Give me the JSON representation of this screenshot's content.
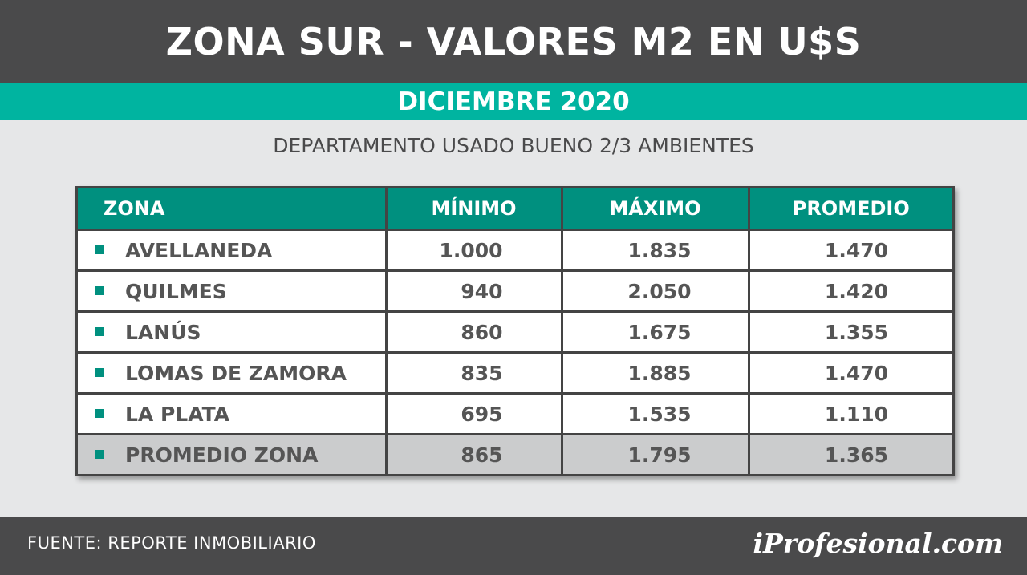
{
  "header": {
    "title": "ZONA SUR - VALORES M2 EN U$S",
    "date": "DICIEMBRE 2020",
    "subtitle": "DEPARTAMENTO USADO BUENO 2/3 AMBIENTES"
  },
  "chart_data": {
    "type": "table",
    "columns": [
      "ZONA",
      "MÍNIMO",
      "MÁXIMO",
      "PROMEDIO"
    ],
    "rows": [
      {
        "zona": "AVELLANEDA",
        "minimo": "1.000",
        "maximo": "1.835",
        "promedio": "1.470"
      },
      {
        "zona": "QUILMES",
        "minimo": "940",
        "maximo": "2.050",
        "promedio": "1.420"
      },
      {
        "zona": "LANÚS",
        "minimo": "860",
        "maximo": "1.675",
        "promedio": "1.355"
      },
      {
        "zona": "LOMAS DE ZAMORA",
        "minimo": "835",
        "maximo": "1.885",
        "promedio": "1.470"
      },
      {
        "zona": "LA PLATA",
        "minimo": "695",
        "maximo": "1.535",
        "promedio": "1.110"
      },
      {
        "zona": "PROMEDIO ZONA",
        "minimo": "865",
        "maximo": "1.795",
        "promedio": "1.365"
      }
    ]
  },
  "footer": {
    "source": "FUENTE: REPORTE INMOBILIARIO",
    "brand": "iProfesional.com"
  },
  "colors": {
    "header_bg": "#4a4a4b",
    "accent": "#00b4a0",
    "table_header": "#00907f",
    "total_row": "#cbcccd"
  }
}
